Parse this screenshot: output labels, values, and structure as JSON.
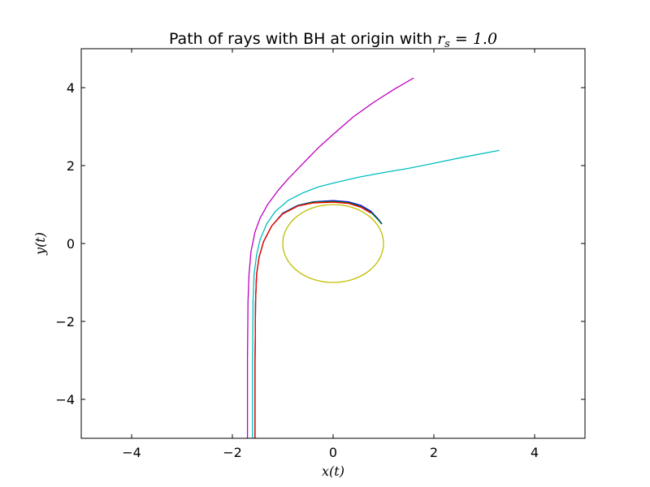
{
  "chart_data": {
    "type": "line",
    "title": {
      "prefix": "Path of rays with BH at origin with ",
      "math_symbol": "r",
      "math_subscript": "s",
      "math_rest": " = 1.0"
    },
    "xlabel": "x(t)",
    "ylabel": "y(t)",
    "xlim": [
      -5,
      5
    ],
    "ylim": [
      -5,
      5
    ],
    "xticks": [
      -4,
      -2,
      0,
      2,
      4
    ],
    "yticks": [
      -4,
      -2,
      0,
      2,
      4
    ],
    "xtick_labels": [
      "−4",
      "−2",
      "0",
      "2",
      "4"
    ],
    "ytick_labels": [
      "−4",
      "−2",
      "0",
      "2",
      "4"
    ],
    "grid": false,
    "series": [
      {
        "color": "#bf00bf",
        "points": [
          [
            -1.7,
            -5
          ],
          [
            -1.7,
            -3
          ],
          [
            -1.69,
            -1.5
          ],
          [
            -1.67,
            -0.8
          ],
          [
            -1.63,
            -0.2
          ],
          [
            -1.55,
            0.3
          ],
          [
            -1.45,
            0.65
          ],
          [
            -1.3,
            1.0
          ],
          [
            -1.1,
            1.35
          ],
          [
            -0.9,
            1.65
          ],
          [
            -0.6,
            2.05
          ],
          [
            -0.3,
            2.45
          ],
          [
            0,
            2.8
          ],
          [
            0.4,
            3.25
          ],
          [
            0.8,
            3.62
          ],
          [
            1.2,
            3.95
          ],
          [
            1.6,
            4.25
          ]
        ]
      },
      {
        "color": "#00bfbf",
        "points": [
          [
            -1.6,
            -5
          ],
          [
            -1.6,
            -3
          ],
          [
            -1.59,
            -1.5
          ],
          [
            -1.57,
            -0.8
          ],
          [
            -1.52,
            -0.3
          ],
          [
            -1.45,
            0.1
          ],
          [
            -1.32,
            0.5
          ],
          [
            -1.15,
            0.82
          ],
          [
            -0.9,
            1.1
          ],
          [
            -0.6,
            1.3
          ],
          [
            -0.3,
            1.45
          ],
          [
            0,
            1.55
          ],
          [
            0.5,
            1.7
          ],
          [
            1.0,
            1.82
          ],
          [
            1.5,
            1.93
          ],
          [
            2.0,
            2.06
          ],
          [
            2.6,
            2.22
          ],
          [
            3.3,
            2.39
          ]
        ]
      },
      {
        "color": "#0000ff",
        "points": [
          [
            -1.55,
            -5
          ],
          [
            -1.55,
            -3
          ],
          [
            -1.54,
            -1.5
          ],
          [
            -1.52,
            -0.8
          ],
          [
            -1.47,
            -0.35
          ],
          [
            -1.38,
            0.05
          ],
          [
            -1.22,
            0.45
          ],
          [
            -1.0,
            0.78
          ],
          [
            -0.7,
            0.98
          ],
          [
            -0.4,
            1.07
          ],
          [
            0,
            1.1
          ],
          [
            0.3,
            1.07
          ],
          [
            0.55,
            0.98
          ],
          [
            0.75,
            0.83
          ],
          [
            0.9,
            0.62
          ],
          [
            0.97,
            0.5
          ]
        ]
      },
      {
        "color": "#008000",
        "points": [
          [
            -1.55,
            -5
          ],
          [
            -1.55,
            -3
          ],
          [
            -1.54,
            -1.5
          ],
          [
            -1.52,
            -0.8
          ],
          [
            -1.47,
            -0.35
          ],
          [
            -1.38,
            0.05
          ],
          [
            -1.22,
            0.45
          ],
          [
            -1.0,
            0.77
          ],
          [
            -0.7,
            0.97
          ],
          [
            -0.4,
            1.06
          ],
          [
            0,
            1.08
          ],
          [
            0.3,
            1.05
          ],
          [
            0.55,
            0.95
          ],
          [
            0.75,
            0.8
          ],
          [
            0.9,
            0.6
          ],
          [
            0.96,
            0.5
          ]
        ]
      },
      {
        "color": "#ff0000",
        "points": [
          [
            -1.55,
            -5
          ],
          [
            -1.55,
            -3
          ],
          [
            -1.54,
            -1.5
          ],
          [
            -1.52,
            -0.8
          ],
          [
            -1.47,
            -0.35
          ],
          [
            -1.38,
            0.05
          ],
          [
            -1.22,
            0.45
          ],
          [
            -1.0,
            0.76
          ],
          [
            -0.7,
            0.96
          ],
          [
            -0.4,
            1.04
          ],
          [
            0,
            1.06
          ],
          [
            0.3,
            1.03
          ],
          [
            0.55,
            0.93
          ],
          [
            0.75,
            0.78
          ]
        ]
      },
      {
        "color": "#bfbf00",
        "shape": "circle",
        "center": [
          0,
          0
        ],
        "radius": 1.0
      }
    ]
  }
}
